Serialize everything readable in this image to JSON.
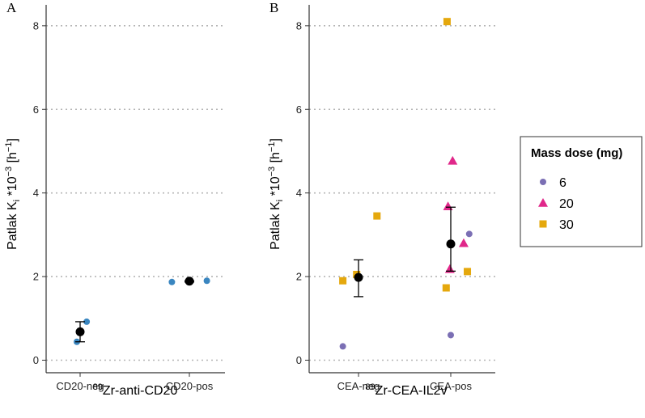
{
  "colors": {
    "6": "#7b6fb4",
    "20": "#e0288a",
    "30": "#e5a80d",
    "single": "#3a86c0",
    "mean": "#000000",
    "grid": "#b5b5b5"
  },
  "legend": {
    "title": "Mass dose (mg)",
    "items": [
      {
        "key": "6",
        "label": "6",
        "shape": "circle"
      },
      {
        "key": "20",
        "label": "20",
        "shape": "triangle"
      },
      {
        "key": "30",
        "label": "30",
        "shape": "square"
      }
    ]
  },
  "chart_data": [
    {
      "panel": "A",
      "type": "scatter",
      "ylabel": {
        "main": "Patlak K",
        "sub": "i",
        "mid": " *10",
        "sup1": "−3",
        "space": " [h",
        "sup2": "−1",
        "end": "]"
      },
      "xlabel": {
        "sup": "89",
        "main": "Zr-anti-CD20"
      },
      "categories": [
        "CD20-neg",
        "CD20-pos"
      ],
      "ylim": [
        -0.3,
        8.5
      ],
      "yticks": [
        0,
        2,
        4,
        6,
        8
      ],
      "points": [
        {
          "category": "CD20-neg",
          "jitter": 0.06,
          "y": 0.92,
          "dose": "single"
        },
        {
          "category": "CD20-neg",
          "jitter": -0.03,
          "y": 0.44,
          "dose": "single"
        },
        {
          "category": "CD20-pos",
          "jitter": -0.16,
          "y": 1.87,
          "dose": "single"
        },
        {
          "category": "CD20-pos",
          "jitter": 0.16,
          "y": 1.9,
          "dose": "single"
        }
      ],
      "summary": [
        {
          "category": "CD20-neg",
          "mean": 0.68,
          "lower": 0.44,
          "upper": 0.92
        },
        {
          "category": "CD20-pos",
          "mean": 1.89,
          "lower": 1.87,
          "upper": 1.9
        }
      ]
    },
    {
      "panel": "B",
      "type": "scatter",
      "ylabel": {
        "main": "Patlak K",
        "sub": "i",
        "mid": " *10",
        "sup1": "−3",
        "space": " [h",
        "sup2": "−1",
        "end": "]"
      },
      "xlabel": {
        "sup": "89",
        "main": "Zr-CEA-IL2v"
      },
      "categories": [
        "CEA-neg",
        "CEA-pos"
      ],
      "ylim": [
        -0.3,
        8.5
      ],
      "yticks": [
        0,
        2,
        4,
        6,
        8
      ],
      "points": [
        {
          "category": "CEA-neg",
          "jitter": -0.17,
          "y": 0.33,
          "dose": "6"
        },
        {
          "category": "CEA-neg",
          "jitter": -0.17,
          "y": 1.9,
          "dose": "30"
        },
        {
          "category": "CEA-neg",
          "jitter": -0.02,
          "y": 2.05,
          "dose": "30"
        },
        {
          "category": "CEA-neg",
          "jitter": 0.2,
          "y": 3.45,
          "dose": "30"
        },
        {
          "category": "CEA-pos",
          "jitter": -0.04,
          "y": 8.1,
          "dose": "30"
        },
        {
          "category": "CEA-pos",
          "jitter": 0.02,
          "y": 4.77,
          "dose": "20"
        },
        {
          "category": "CEA-pos",
          "jitter": -0.03,
          "y": 3.68,
          "dose": "20"
        },
        {
          "category": "CEA-pos",
          "jitter": 0.2,
          "y": 3.02,
          "dose": "6"
        },
        {
          "category": "CEA-pos",
          "jitter": 0.14,
          "y": 2.8,
          "dose": "20"
        },
        {
          "category": "CEA-pos",
          "jitter": -0.01,
          "y": 2.18,
          "dose": "20"
        },
        {
          "category": "CEA-pos",
          "jitter": 0.18,
          "y": 2.12,
          "dose": "30"
        },
        {
          "category": "CEA-pos",
          "jitter": -0.05,
          "y": 1.73,
          "dose": "30"
        },
        {
          "category": "CEA-pos",
          "jitter": 0.0,
          "y": 0.6,
          "dose": "6"
        }
      ],
      "summary": [
        {
          "category": "CEA-neg",
          "mean": 1.98,
          "lower": 1.52,
          "upper": 2.4
        },
        {
          "category": "CEA-pos",
          "mean": 2.78,
          "lower": 2.13,
          "upper": 3.66
        }
      ]
    }
  ]
}
